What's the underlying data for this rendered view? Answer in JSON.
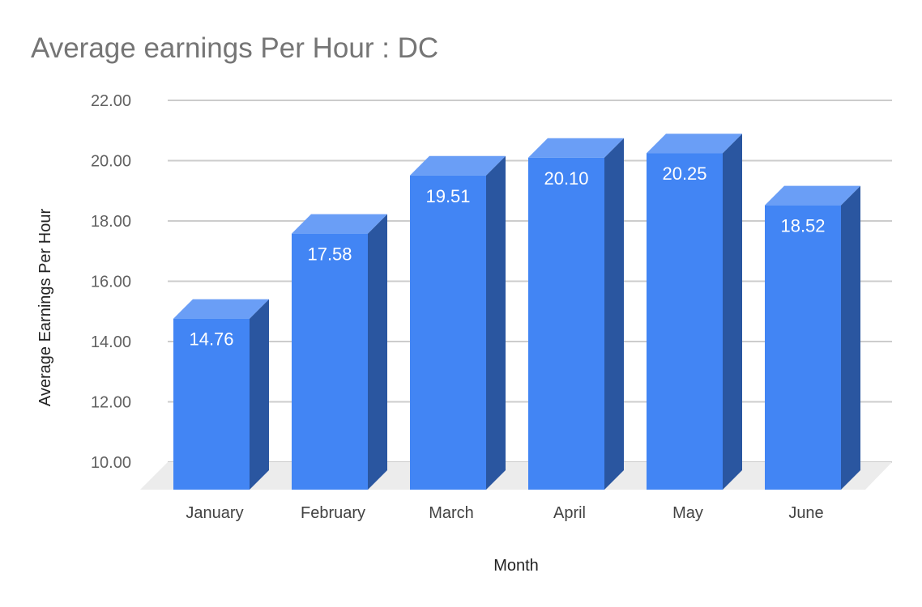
{
  "chart_data": {
    "type": "bar",
    "style": "3d",
    "title": "Average earnings Per Hour : DC",
    "xlabel": "Month",
    "ylabel": "Average Earnings Per Hour",
    "categories": [
      "January",
      "February",
      "March",
      "April",
      "May",
      "June"
    ],
    "values": [
      14.76,
      17.58,
      19.51,
      20.1,
      20.25,
      18.52
    ],
    "value_labels": [
      "14.76",
      "17.58",
      "19.51",
      "20.10",
      "20.25",
      "18.52"
    ],
    "yticks": [
      "22.00",
      "20.00",
      "18.00",
      "16.00",
      "14.00",
      "12.00",
      "10.00"
    ],
    "ylim": [
      9.1,
      22
    ],
    "grid": true,
    "legend": "none",
    "colors": {
      "front": "#4285f4",
      "top": "#6a9ef6",
      "side": "#2a56a0",
      "grid": "#cccccc",
      "floor": "#ececec"
    }
  }
}
